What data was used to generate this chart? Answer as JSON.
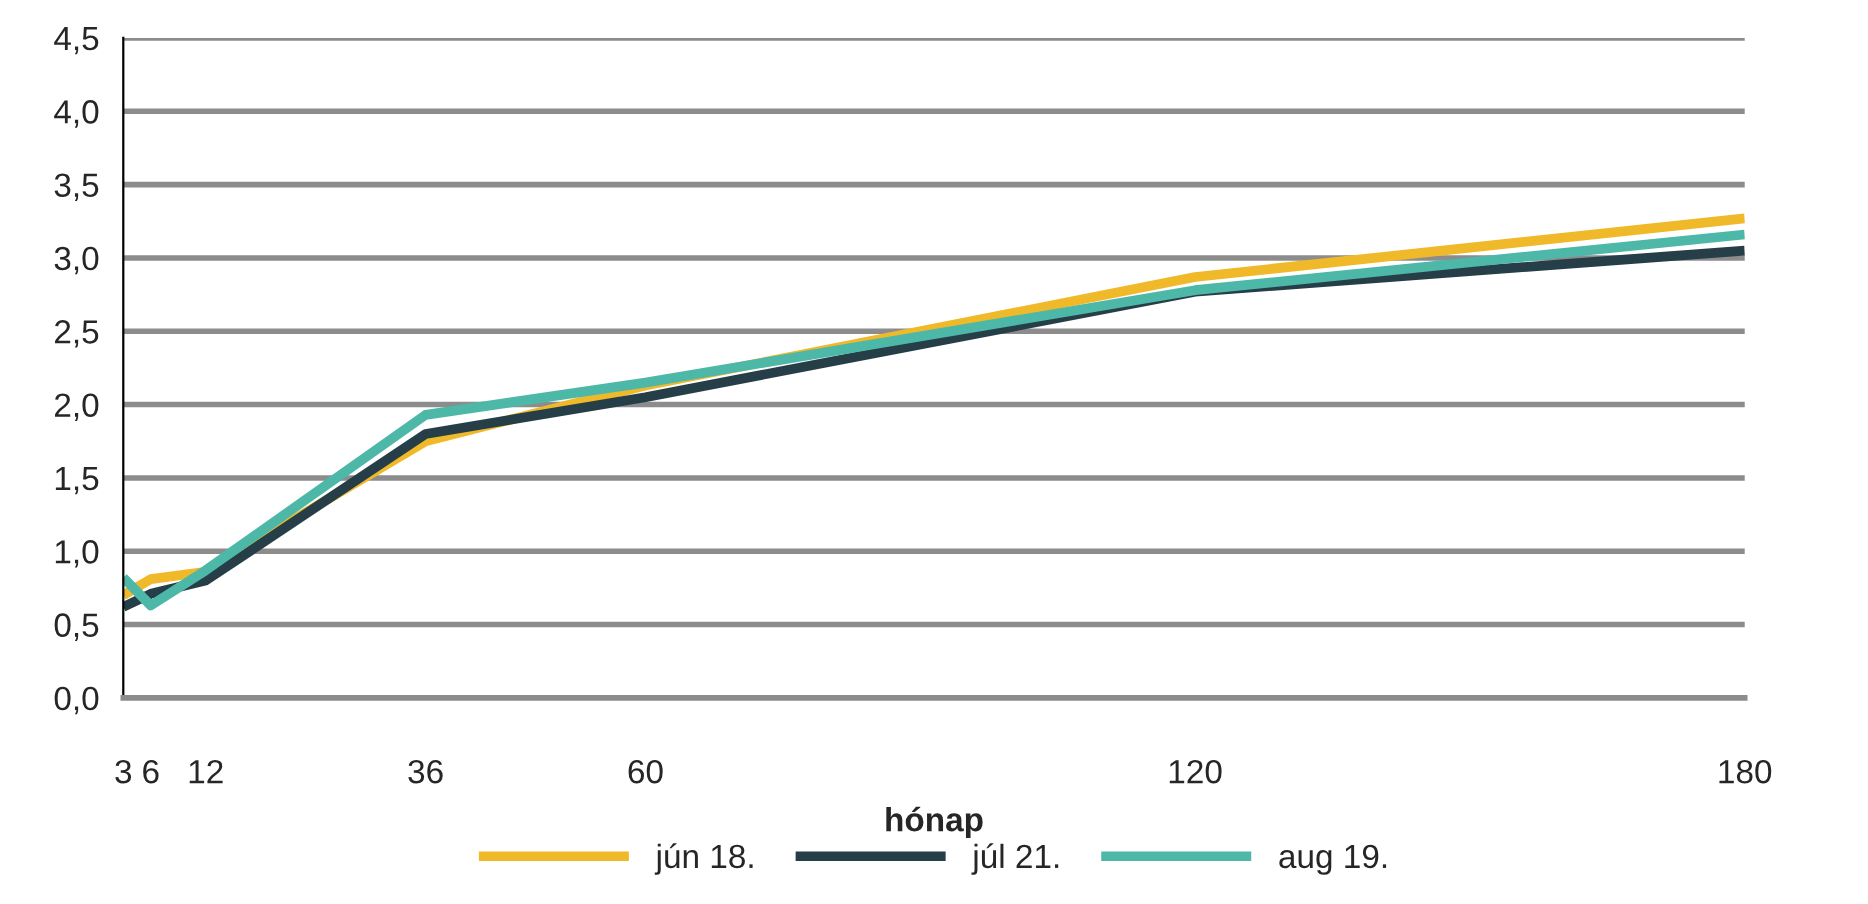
{
  "chart_data": {
    "type": "line",
    "xlabel": "hónap",
    "x": [
      3,
      6,
      12,
      36,
      60,
      120,
      180
    ],
    "series": [
      {
        "name": "jún 18.",
        "color": "#f0b92a",
        "values": [
          0.7,
          0.81,
          0.86,
          1.75,
          2.13,
          2.87,
          3.27
        ]
      },
      {
        "name": "júl 21.",
        "color": "#263e48",
        "values": [
          0.62,
          0.71,
          0.8,
          1.8,
          2.05,
          2.77,
          3.05
        ]
      },
      {
        "name": "aug 19.",
        "color": "#4db8a8",
        "values": [
          0.82,
          0.63,
          0.87,
          1.93,
          2.15,
          2.78,
          3.16
        ]
      }
    ],
    "xlim": [
      3,
      180
    ],
    "xticks": [
      3,
      6,
      12,
      36,
      60,
      120,
      180
    ],
    "ylim": [
      0,
      4.5
    ],
    "yticks": [
      {
        "value": 0,
        "label": "0,0"
      },
      {
        "value": 0.5,
        "label": "0,5"
      },
      {
        "value": 1,
        "label": "1,0"
      },
      {
        "value": 1.5,
        "label": "1,5"
      },
      {
        "value": 2,
        "label": "2,0"
      },
      {
        "value": 2.5,
        "label": "2,5"
      },
      {
        "value": 3,
        "label": "3,0"
      },
      {
        "value": 3.5,
        "label": "3,5"
      },
      {
        "value": 4,
        "label": "4,0"
      },
      {
        "value": 4.5,
        "label": "4,5"
      }
    ],
    "grid": "y",
    "legend": "bottom",
    "marker": "none",
    "line_style": "solid"
  }
}
